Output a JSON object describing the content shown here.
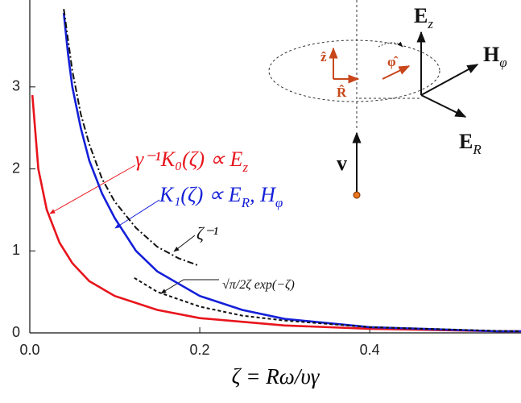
{
  "chart_data": {
    "type": "line",
    "xlim": [
      0,
      0.578
    ],
    "ylim": [
      0,
      4.06
    ],
    "xticks": [
      {
        "value": 0,
        "label": "0.0"
      },
      0.2,
      0.4
    ],
    "yticks": [
      0,
      1,
      2,
      3
    ],
    "x_label": "ζ = Rω/υγ",
    "series": [
      {
        "color": "#e8141c",
        "dash": "solid",
        "x": [
          0.003,
          0.01,
          0.02,
          0.035,
          0.05,
          0.07,
          0.1,
          0.15,
          0.2,
          0.3,
          0.4,
          0.55,
          0.578
        ],
        "values": [
          2.9,
          2.0,
          1.5,
          1.1,
          0.85,
          0.63,
          0.45,
          0.28,
          0.18,
          0.09,
          0.05,
          0.02,
          0.02
        ]
      },
      {
        "color": "#1420d8",
        "dash": "solid",
        "x": [
          0.04,
          0.045,
          0.05,
          0.06,
          0.07,
          0.085,
          0.1,
          0.125,
          0.15,
          0.2,
          0.25,
          0.3,
          0.4,
          0.55,
          0.578
        ],
        "values": [
          3.9,
          3.4,
          3.0,
          2.5,
          2.1,
          1.7,
          1.4,
          1.0,
          0.75,
          0.45,
          0.28,
          0.17,
          0.07,
          0.02,
          0.02
        ]
      },
      {
        "color": "#111111",
        "dash": "dashdot",
        "x": [
          0.04,
          0.05,
          0.06,
          0.07,
          0.085,
          0.1,
          0.125,
          0.15,
          0.175,
          0.199
        ],
        "values": [
          3.95,
          3.2,
          2.67,
          2.3,
          1.88,
          1.6,
          1.28,
          1.05,
          0.91,
          0.82
        ]
      },
      {
        "color": "#111111",
        "dash": "dotted",
        "x": [
          0.123,
          0.15,
          0.2,
          0.25,
          0.3,
          0.4,
          0.55,
          0.578
        ],
        "values": [
          0.67,
          0.5,
          0.32,
          0.21,
          0.15,
          0.07,
          0.025,
          0.02
        ]
      }
    ],
    "annotations": [
      {
        "color": "#e8141c",
        "parts": [
          {
            "text": "γ⁻¹K₀(ζ) ∝ E"
          },
          {
            "text": "z",
            "sub": true
          }
        ]
      },
      {
        "color": "#1420d8",
        "parts": [
          {
            "text": "K₁(ζ) ∝ E"
          },
          {
            "text": "R",
            "sub": true
          },
          {
            "text": ", H"
          },
          {
            "text": "φ",
            "sub": true
          }
        ]
      },
      {
        "color": "#111111",
        "parts": [
          {
            "text": "ζ⁻¹"
          }
        ]
      },
      {
        "color": "#111111",
        "parts": [
          {
            "text": "√π/2ζ exp(−ζ)"
          }
        ]
      },
      {
        "color": "#111111",
        "parts": [
          {
            "text": "E"
          },
          {
            "text": "z",
            "sub": true
          }
        ]
      },
      {
        "color": "#111111",
        "parts": [
          {
            "text": "H"
          },
          {
            "text": "φ",
            "sub": true
          }
        ]
      },
      {
        "color": "#111111",
        "parts": [
          {
            "text": "E"
          },
          {
            "text": "R",
            "sub": true
          }
        ]
      },
      {
        "color": "#111111",
        "parts": [
          {
            "text": "v"
          }
        ]
      },
      {
        "color": "#c8461a",
        "parts": [
          {
            "text": "ẑ"
          }
        ]
      },
      {
        "color": "#c8461a",
        "parts": [
          {
            "text": "φ̂"
          }
        ]
      },
      {
        "color": "#c8461a",
        "parts": [
          {
            "text": "R̂"
          }
        ]
      }
    ]
  }
}
